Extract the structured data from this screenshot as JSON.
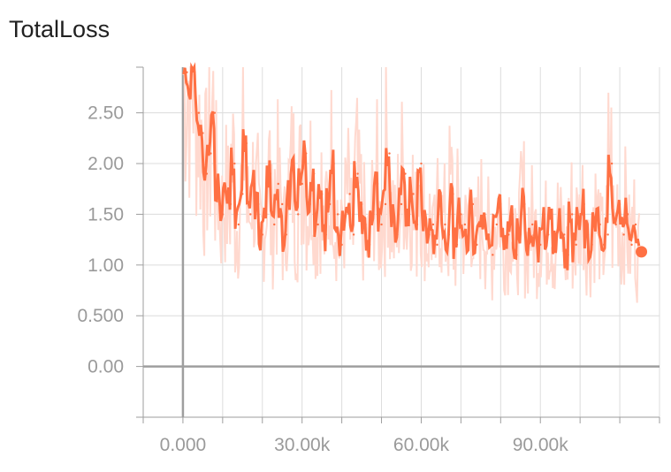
{
  "chart_data": {
    "type": "line",
    "title": "TotalLoss",
    "xlabel": "",
    "ylabel": "",
    "xlim": [
      -10000,
      120000
    ],
    "ylim": [
      -0.5,
      2.95
    ],
    "x_ticks": [
      0,
      30000,
      60000,
      90000
    ],
    "x_tick_labels": [
      "0.000",
      "30.00k",
      "60.00k",
      "90.00k"
    ],
    "y_ticks": [
      0,
      0.5,
      1.0,
      1.5,
      2.0,
      2.5
    ],
    "y_tick_labels": [
      "0.00",
      "0.500",
      "1.00",
      "1.50",
      "2.00",
      "2.50"
    ],
    "grid": true,
    "colors": {
      "smoothed": "#ff7043",
      "raw": "#ffd9cf",
      "axis": "#9e9e9e",
      "grid": "#dcdcdc"
    },
    "series": [
      {
        "x": [
          1000,
          2000,
          3000,
          4000,
          5000,
          6000,
          7000,
          8000,
          9000,
          10000,
          11000,
          12000,
          13000,
          14000,
          15000,
          16000,
          17000,
          18000,
          19000,
          20000,
          21000,
          22000,
          23000,
          24000,
          25000,
          26000,
          27000,
          28000,
          29000,
          30000,
          31000,
          32000,
          33000,
          34000,
          35000,
          36000,
          37000,
          38000,
          39000,
          40000,
          41000,
          42000,
          43000,
          44000,
          45000,
          46000,
          47000,
          48000,
          49000,
          50000,
          51000,
          52000,
          53000,
          54000,
          55000,
          56000,
          57000,
          58000,
          59000,
          60000,
          61000,
          62000,
          63000,
          64000,
          65000,
          66000,
          67000,
          68000,
          69000,
          70000,
          71000,
          72000,
          73000,
          74000,
          75000,
          76000,
          77000,
          78000,
          79000,
          80000,
          81000,
          82000,
          83000,
          84000,
          85000,
          86000,
          87000,
          88000,
          89000,
          90000,
          91000,
          92000,
          93000,
          94000,
          95000,
          96000,
          97000,
          98000,
          99000,
          100000,
          101000,
          102000,
          103000,
          104000,
          105000,
          106000,
          107000,
          108000,
          109000,
          110000,
          111000,
          112000,
          113000,
          114000,
          115000
        ],
        "values": [
          2.9,
          2.8,
          2.9,
          2.5,
          2.3,
          1.9,
          2.1,
          2.5,
          1.8,
          1.5,
          1.7,
          1.6,
          2.0,
          1.4,
          1.7,
          2.2,
          1.5,
          1.8,
          1.6,
          1.3,
          1.5,
          1.9,
          1.4,
          1.8,
          1.6,
          1.3,
          1.7,
          1.9,
          1.5,
          1.8,
          2.1,
          1.6,
          1.9,
          1.4,
          1.7,
          1.3,
          1.6,
          2.0,
          1.5,
          1.2,
          1.5,
          1.7,
          1.3,
          1.9,
          1.6,
          1.4,
          1.2,
          1.5,
          1.8,
          1.4,
          1.6,
          2.1,
          1.5,
          1.3,
          1.6,
          1.9,
          1.5,
          1.7,
          1.4,
          2.0,
          1.5,
          1.3,
          1.4,
          1.2,
          1.6,
          1.4,
          1.3,
          1.7,
          1.2,
          1.5,
          1.4,
          1.3,
          1.6,
          1.2,
          1.4,
          1.5,
          1.3,
          1.1,
          1.4,
          1.6,
          1.2,
          1.3,
          1.5,
          1.1,
          1.3,
          1.6,
          1.2,
          1.4,
          1.3,
          1.2,
          1.5,
          1.3,
          1.4,
          1.2,
          1.4,
          1.3,
          1.1,
          1.5,
          1.2,
          1.4,
          1.6,
          1.3,
          1.2,
          1.5,
          1.4,
          1.2,
          1.3,
          2.0,
          1.4,
          1.6,
          1.3,
          1.5,
          1.2,
          1.4,
          1.13
        ]
      }
    ]
  }
}
